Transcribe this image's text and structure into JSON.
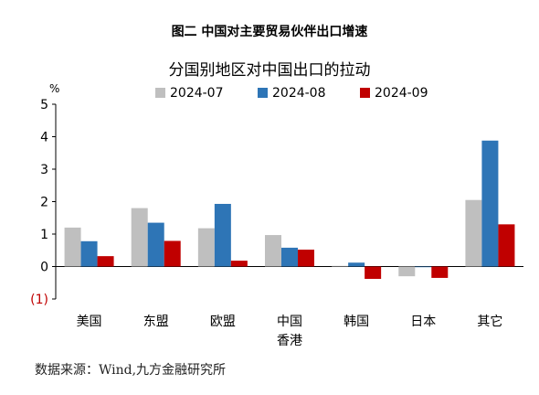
{
  "figure_title": "图二 中国对主要贸易伙伴出口增速",
  "source": "数据来源：Wind,九方金融研究所",
  "chart_data": {
    "type": "bar",
    "title": "分国别地区对中国出口的拉动",
    "ylabel": "%",
    "ylim": [
      -1,
      5
    ],
    "yticks": [
      5,
      4,
      3,
      2,
      1,
      0,
      -1
    ],
    "ytick_labels": [
      "5",
      "4",
      "3",
      "2",
      "1",
      "0",
      "(1)"
    ],
    "categories": [
      "美国",
      "东盟",
      "欧盟",
      "中国香港",
      "韩国",
      "日本",
      "其它"
    ],
    "category_lines": [
      [
        "美国"
      ],
      [
        "东盟"
      ],
      [
        "欧盟"
      ],
      [
        "中国",
        "香港"
      ],
      [
        "韩国"
      ],
      [
        "日本"
      ],
      [
        "其它"
      ]
    ],
    "series": [
      {
        "name": "2024-07",
        "color": "#bfbfbf",
        "values": [
          1.2,
          1.8,
          1.18,
          0.97,
          0.02,
          -0.3,
          2.05
        ]
      },
      {
        "name": "2024-08",
        "color": "#2e75b6",
        "values": [
          0.78,
          1.35,
          1.93,
          0.58,
          0.12,
          -0.02,
          3.88
        ]
      },
      {
        "name": "2024-09",
        "color": "#c00000",
        "values": [
          0.32,
          0.79,
          0.18,
          0.52,
          -0.38,
          -0.35,
          1.3
        ]
      }
    ],
    "legend_position": "top",
    "grid": false,
    "negative_tick_color": "#c00000"
  }
}
